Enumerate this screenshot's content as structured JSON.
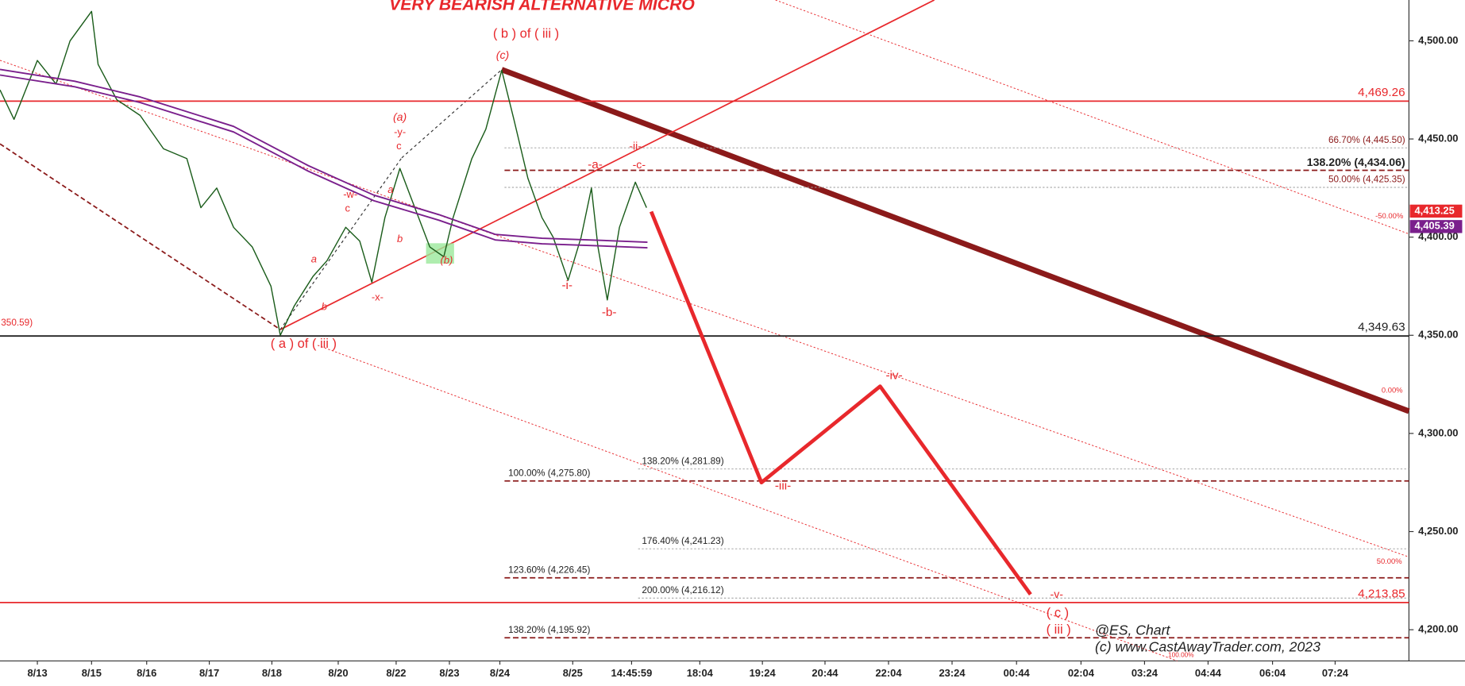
{
  "chart_data": {
    "type": "line",
    "title": "VERY BEARISH ALTERNATIVE MICRO",
    "xlim": [
      0,
      1508
    ],
    "xticks": [
      {
        "value": 40,
        "label": "8/13"
      },
      {
        "value": 98,
        "label": "8/15"
      },
      {
        "value": 157,
        "label": "8/16"
      },
      {
        "value": 224,
        "label": "8/17"
      },
      {
        "value": 291,
        "label": "8/18"
      },
      {
        "value": 362,
        "label": "8/20"
      },
      {
        "value": 424,
        "label": "8/22"
      },
      {
        "value": 481,
        "label": "8/23"
      },
      {
        "value": 535,
        "label": "8/24"
      },
      {
        "value": 613,
        "label": "8/25"
      },
      {
        "value": 676,
        "label": "14:45:59"
      },
      {
        "value": 749,
        "label": "18:04"
      },
      {
        "value": 816,
        "label": "19:24"
      },
      {
        "value": 883,
        "label": "20:44"
      },
      {
        "value": 951,
        "label": "22:04"
      },
      {
        "value": 1019,
        "label": "23:24"
      },
      {
        "value": 1088,
        "label": "00:44"
      },
      {
        "value": 1157,
        "label": "02:04"
      },
      {
        "value": 1225,
        "label": "03:24"
      },
      {
        "value": 1293,
        "label": "04:44"
      },
      {
        "value": 1362,
        "label": "06:04"
      },
      {
        "value": 1429,
        "label": "07:24"
      }
    ],
    "ylim": [
      4184.1,
      4520.8
    ],
    "yticks": [
      {
        "value": 4200,
        "label": "4,200.00"
      },
      {
        "value": 4250,
        "label": "4,250.00"
      },
      {
        "value": 4300,
        "label": "4,300.00"
      },
      {
        "value": 4350,
        "label": "4,350.00"
      },
      {
        "value": 4400,
        "label": "4,400.00"
      },
      {
        "value": 4450,
        "label": "4,450.00"
      },
      {
        "value": 4500,
        "label": "4,500.00"
      }
    ],
    "series": [
      {
        "name": "ES",
        "color": "#1a5c1a",
        "x": [
          0,
          15,
          40,
          60,
          75,
          98,
          105,
          125,
          150,
          175,
          200,
          215,
          232,
          250,
          270,
          290,
          300,
          315,
          335,
          350,
          370,
          385,
          398,
          412,
          428,
          440,
          460,
          475,
          485,
          505,
          520,
          537,
          550,
          565,
          580,
          592,
          608,
          622,
          633,
          640,
          650,
          663,
          680,
          692
        ],
        "values": [
          4475,
          4460,
          4490,
          4478,
          4500,
          4515,
          4488,
          4470,
          4462,
          4445,
          4440,
          4415,
          4425,
          4405,
          4395,
          4375,
          4350,
          4365,
          4380,
          4388,
          4405,
          4398,
          4377,
          4410,
          4435,
          4420,
          4395,
          4390,
          4410,
          4440,
          4455,
          4485,
          4460,
          4430,
          4410,
          4400,
          4378,
          4400,
          4425,
          4395,
          4368,
          4405,
          4428,
          4415
        ]
      },
      {
        "name": "MA",
        "color": "#7a1f8c",
        "x": [
          0,
          80,
          150,
          250,
          330,
          400,
          470,
          530,
          580,
          640,
          693
        ],
        "values": [
          4484,
          4478,
          4470,
          4455,
          4435,
          4420,
          4410,
          4400,
          4398,
          4397,
          4396
        ]
      },
      {
        "name": "Projection",
        "color": "#e8282c",
        "x": [
          697,
          815,
          942,
          1103
        ],
        "values": [
          4413,
          4275,
          4324,
          4218
        ]
      }
    ],
    "hlines": [
      {
        "value": 4469.26,
        "label": "4,469.26",
        "color": "#e8282c"
      },
      {
        "value": 4349.63,
        "label": "4,349.63",
        "color": "#222222"
      },
      {
        "value": 4213.85,
        "label": "4,213.85",
        "color": "#e8282c"
      }
    ],
    "levels": [
      {
        "value": 4445.5,
        "label": "66.70% (4,445.50)"
      },
      {
        "value": 4434.06,
        "label": "138.20% (4,434.06)"
      },
      {
        "value": 4425.35,
        "label": "50.00% (4,425.35)"
      },
      {
        "value": 4281.89,
        "label": "138.20% (4,281.89)"
      },
      {
        "value": 4275.8,
        "label": "100.00% (4,275.80)"
      },
      {
        "value": 4241.23,
        "label": "176.40% (4,241.23)"
      },
      {
        "value": 4226.45,
        "label": "123.60% (4,226.45)"
      },
      {
        "value": 4216.12,
        "label": "200.00% (4,216.12)"
      },
      {
        "value": 4195.92,
        "label": "138.20% (4,195.92)"
      }
    ],
    "price_tags": [
      {
        "value": 4413.25,
        "label": "4,413.25",
        "color": "#e8282c"
      },
      {
        "value": 4405.39,
        "label": "4,405.39",
        "color": "#7a1f8c"
      }
    ],
    "annotations": [
      "( b ) of ( iii )",
      "(c)",
      "(a)",
      "-y-",
      "c",
      "-w-",
      "c",
      "a",
      "b",
      "a",
      "b",
      "-x-",
      "(b)",
      "( a ) of ( iii )",
      "-i-",
      "-a-",
      "-ii-",
      "-c-",
      "-b-",
      "-iii-",
      "-iv-",
      "-v-",
      "( c )",
      "( iii )",
      "350.59)",
      "-50.00%",
      "0.00%",
      "50.00%",
      "100.00%"
    ],
    "watermark": [
      "@ES, Chart",
      "(c) www.CastAwayTrader.com, 2023"
    ]
  }
}
